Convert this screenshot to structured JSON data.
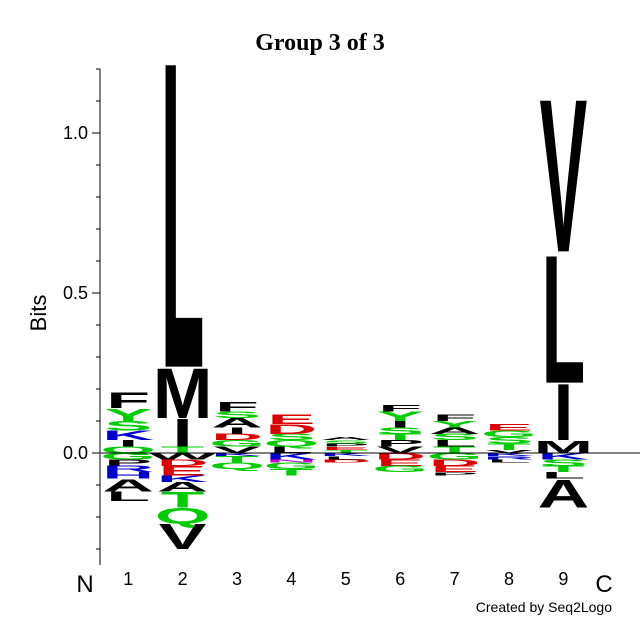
{
  "chart_data": {
    "type": "sequence-logo",
    "title": "Group 3 of 3",
    "ylabel": "Bits",
    "y_ticks": [
      "0.0",
      "0.5",
      "1.0"
    ],
    "y_tick_values": [
      0.0,
      0.5,
      1.0
    ],
    "ylim": [
      -0.35,
      1.2
    ],
    "positions": [
      "1",
      "2",
      "3",
      "4",
      "5",
      "6",
      "7",
      "8",
      "9"
    ],
    "n_terminus_label": "N",
    "c_terminus_label": "C",
    "credit": "Created by Seq2Logo",
    "colors": {
      "hydrophobic": "#000000",
      "polar": "#00cc00",
      "acidic": "#dd0000",
      "basic": "#0000cc",
      "amide": "#cc00cc"
    },
    "stacks": [
      {
        "position": "1",
        "above": [
          {
            "letter": "Q",
            "bits": 0.02,
            "color": "#00cc00"
          },
          {
            "letter": "I",
            "bits": 0.02,
            "color": "#000000"
          },
          {
            "letter": "K",
            "bits": 0.03,
            "color": "#0000cc"
          },
          {
            "letter": "S",
            "bits": 0.03,
            "color": "#00cc00"
          },
          {
            "letter": "Y",
            "bits": 0.04,
            "color": "#00cc00"
          },
          {
            "letter": "F",
            "bits": 0.05,
            "color": "#000000"
          }
        ],
        "below": [
          {
            "letter": "G",
            "bits": 0.02,
            "color": "#00cc00"
          },
          {
            "letter": "P",
            "bits": 0.02,
            "color": "#000000"
          },
          {
            "letter": "R",
            "bits": 0.02,
            "color": "#0000cc"
          },
          {
            "letter": "H",
            "bits": 0.02,
            "color": "#0000cc"
          },
          {
            "letter": "A",
            "bits": 0.04,
            "color": "#000000"
          },
          {
            "letter": "L",
            "bits": 0.03,
            "color": "#000000"
          }
        ]
      },
      {
        "position": "2",
        "above": [
          {
            "letter": "T",
            "bits": 0.02,
            "color": "#00cc00"
          },
          {
            "letter": "I",
            "bits": 0.09,
            "color": "#000000"
          },
          {
            "letter": "M",
            "bits": 0.16,
            "color": "#000000"
          },
          {
            "letter": "L",
            "bits": 0.98,
            "color": "#000000"
          }
        ],
        "below": [
          {
            "letter": "W",
            "bits": 0.02,
            "color": "#000000"
          },
          {
            "letter": "D",
            "bits": 0.02,
            "color": "#dd0000"
          },
          {
            "letter": "E",
            "bits": 0.03,
            "color": "#dd0000"
          },
          {
            "letter": "K",
            "bits": 0.02,
            "color": "#0000cc"
          },
          {
            "letter": "A",
            "bits": 0.03,
            "color": "#000000"
          },
          {
            "letter": "T",
            "bits": 0.05,
            "color": "#00cc00"
          },
          {
            "letter": "Q",
            "bits": 0.05,
            "color": "#00cc00"
          },
          {
            "letter": "V",
            "bits": 0.08,
            "color": "#000000"
          }
        ]
      },
      {
        "position": "3",
        "above": [
          {
            "letter": "V",
            "bits": 0.02,
            "color": "#000000"
          },
          {
            "letter": "G",
            "bits": 0.02,
            "color": "#00cc00"
          },
          {
            "letter": "D",
            "bits": 0.02,
            "color": "#dd0000"
          },
          {
            "letter": "I",
            "bits": 0.02,
            "color": "#000000"
          },
          {
            "letter": "A",
            "bits": 0.03,
            "color": "#000000"
          },
          {
            "letter": "S",
            "bits": 0.02,
            "color": "#00cc00"
          },
          {
            "letter": "F",
            "bits": 0.03,
            "color": "#000000"
          }
        ],
        "below": [
          {
            "letter": "K",
            "bits": 0.01,
            "color": "#0000cc"
          },
          {
            "letter": "T",
            "bits": 0.02,
            "color": "#00cc00"
          },
          {
            "letter": "Q",
            "bits": 0.02,
            "color": "#00cc00"
          }
        ]
      },
      {
        "position": "4",
        "above": [
          {
            "letter": "L",
            "bits": 0.02,
            "color": "#000000"
          },
          {
            "letter": "Q",
            "bits": 0.02,
            "color": "#00cc00"
          },
          {
            "letter": "S",
            "bits": 0.02,
            "color": "#00cc00"
          },
          {
            "letter": "D",
            "bits": 0.03,
            "color": "#dd0000"
          },
          {
            "letter": "E",
            "bits": 0.03,
            "color": "#dd0000"
          }
        ],
        "below": [
          {
            "letter": "K",
            "bits": 0.02,
            "color": "#0000cc"
          },
          {
            "letter": "N",
            "bits": 0.01,
            "color": "#cc00cc"
          },
          {
            "letter": "G",
            "bits": 0.02,
            "color": "#00cc00"
          },
          {
            "letter": "T",
            "bits": 0.02,
            "color": "#00cc00"
          }
        ]
      },
      {
        "position": "5",
        "above": [
          {
            "letter": "T",
            "bits": 0.01,
            "color": "#00cc00"
          },
          {
            "letter": "E",
            "bits": 0.01,
            "color": "#dd0000"
          },
          {
            "letter": "P",
            "bits": 0.01,
            "color": "#000000"
          },
          {
            "letter": "S",
            "bits": 0.01,
            "color": "#00cc00"
          },
          {
            "letter": "A",
            "bits": 0.01,
            "color": "#000000"
          }
        ],
        "below": [
          {
            "letter": "K",
            "bits": 0.01,
            "color": "#0000cc"
          },
          {
            "letter": "L",
            "bits": 0.01,
            "color": "#000000"
          },
          {
            "letter": "D",
            "bits": 0.01,
            "color": "#dd0000"
          }
        ]
      },
      {
        "position": "6",
        "above": [
          {
            "letter": "V",
            "bits": 0.02,
            "color": "#000000"
          },
          {
            "letter": "P",
            "bits": 0.02,
            "color": "#000000"
          },
          {
            "letter": "T",
            "bits": 0.02,
            "color": "#00cc00"
          },
          {
            "letter": "S",
            "bits": 0.02,
            "color": "#00cc00"
          },
          {
            "letter": "I",
            "bits": 0.02,
            "color": "#000000"
          },
          {
            "letter": "Y",
            "bits": 0.03,
            "color": "#00cc00"
          },
          {
            "letter": "F",
            "bits": 0.02,
            "color": "#000000"
          }
        ],
        "below": [
          {
            "letter": "D",
            "bits": 0.02,
            "color": "#dd0000"
          },
          {
            "letter": "E",
            "bits": 0.02,
            "color": "#dd0000"
          },
          {
            "letter": "G",
            "bits": 0.02,
            "color": "#00cc00"
          }
        ]
      },
      {
        "position": "7",
        "above": [
          {
            "letter": "T",
            "bits": 0.02,
            "color": "#00cc00"
          },
          {
            "letter": "L",
            "bits": 0.02,
            "color": "#000000"
          },
          {
            "letter": "S",
            "bits": 0.02,
            "color": "#00cc00"
          },
          {
            "letter": "A",
            "bits": 0.02,
            "color": "#000000"
          },
          {
            "letter": "Y",
            "bits": 0.02,
            "color": "#00cc00"
          },
          {
            "letter": "F",
            "bits": 0.02,
            "color": "#000000"
          }
        ],
        "below": [
          {
            "letter": "G",
            "bits": 0.02,
            "color": "#00cc00"
          },
          {
            "letter": "D",
            "bits": 0.02,
            "color": "#dd0000"
          },
          {
            "letter": "E",
            "bits": 0.02,
            "color": "#dd0000"
          },
          {
            "letter": "P",
            "bits": 0.01,
            "color": "#000000"
          }
        ]
      },
      {
        "position": "8",
        "above": [
          {
            "letter": "V",
            "bits": 0.01,
            "color": "#000000"
          },
          {
            "letter": "T",
            "bits": 0.02,
            "color": "#00cc00"
          },
          {
            "letter": "S",
            "bits": 0.02,
            "color": "#00cc00"
          },
          {
            "letter": "G",
            "bits": 0.02,
            "color": "#00cc00"
          },
          {
            "letter": "E",
            "bits": 0.02,
            "color": "#dd0000"
          }
        ],
        "below": [
          {
            "letter": "K",
            "bits": 0.01,
            "color": "#0000cc"
          },
          {
            "letter": "R",
            "bits": 0.01,
            "color": "#0000cc"
          },
          {
            "letter": "L",
            "bits": 0.01,
            "color": "#000000"
          }
        ]
      },
      {
        "position": "9",
        "above": [
          {
            "letter": "M",
            "bits": 0.04,
            "color": "#000000"
          },
          {
            "letter": "I",
            "bits": 0.18,
            "color": "#000000"
          },
          {
            "letter": "L",
            "bits": 0.41,
            "color": "#000000"
          },
          {
            "letter": "V",
            "bits": 0.49,
            "color": "#000000"
          }
        ],
        "below": [
          {
            "letter": "K",
            "bits": 0.02,
            "color": "#0000cc"
          },
          {
            "letter": "S",
            "bits": 0.02,
            "color": "#00cc00"
          },
          {
            "letter": "T",
            "bits": 0.02,
            "color": "#00cc00"
          },
          {
            "letter": "L",
            "bits": 0.02,
            "color": "#000000"
          },
          {
            "letter": "A",
            "bits": 0.09,
            "color": "#000000"
          }
        ]
      }
    ]
  }
}
